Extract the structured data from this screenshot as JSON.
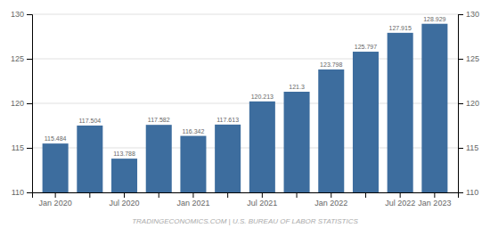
{
  "chart_data": {
    "type": "bar",
    "categories": [
      "Jan 2020",
      null,
      "Jul 2020",
      null,
      "Jan 2021",
      null,
      "Jul 2021",
      null,
      "Jan 2022",
      null,
      "Jul 2022",
      "Jan 2023"
    ],
    "values": [
      115.484,
      117.504,
      113.788,
      117.582,
      116.342,
      117.613,
      120.213,
      121.3,
      123.798,
      125.797,
      127.915,
      128.929
    ],
    "color": "#3d6d9e",
    "ylim": [
      110,
      130
    ],
    "yticks": [
      110,
      115,
      120,
      125,
      130
    ],
    "y2lim": [
      110,
      130
    ],
    "y2ticks": [
      110,
      115,
      120,
      125,
      130
    ],
    "grid": true,
    "data_labels": true,
    "annotations": [
      "TRADINGECONOMICS.COM | U.S. BUREAU OF LABOR STATISTICS"
    ]
  }
}
